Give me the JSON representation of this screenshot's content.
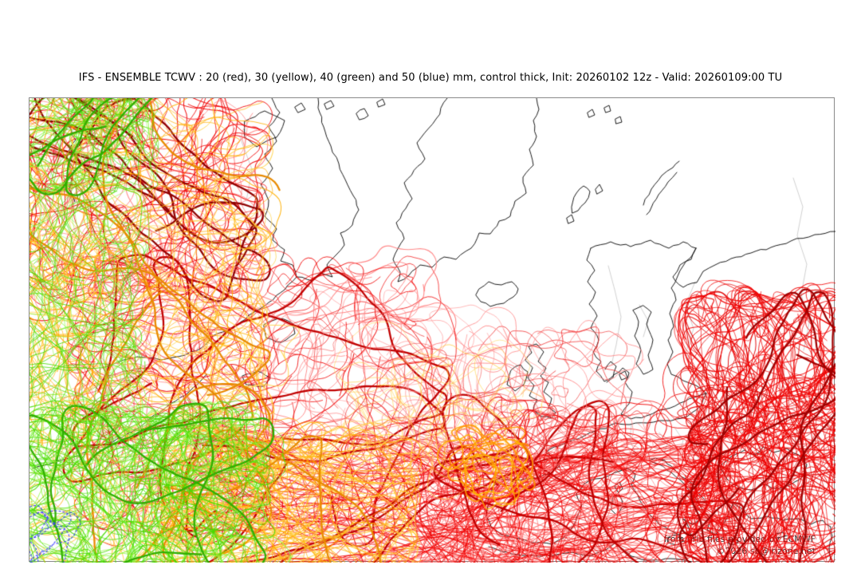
{
  "title": "IFS - ENSEMBLE TCWV : 20 (red), 30 (yellow), 40 (green) and 50 (blue) mm, control thick, Init: 20260102 12z - Valid: 20260109:00 TU",
  "run": {
    "model": "IFS - ENSEMBLE",
    "parameter": "TCWV",
    "units": "mm",
    "style_note": "control thick",
    "init": "20260102 12z",
    "valid": "20260109:00 TU"
  },
  "attribution": {
    "line1": "from grib files provided by ECMWF",
    "line2": "©2026 sb@irizone.net"
  },
  "map": {
    "coast_color": "#000000",
    "border_color": "#c4c4c4",
    "frame_color": "#8a8a8a",
    "background": "#ffffff",
    "contour_levels_mm": [
      {
        "value": 20,
        "color_name": "red",
        "hex": "#f00000"
      },
      {
        "value": 30,
        "color_name": "yellow",
        "hex": "#ffaf00"
      },
      {
        "value": 40,
        "color_name": "green",
        "hex": "#49dc00"
      },
      {
        "value": 50,
        "color_name": "blue",
        "hex": "#3c3cff"
      }
    ]
  },
  "spaghetti_clusters": [
    {
      "name": "red-northwest-tangle",
      "color": "#f00000",
      "alt": "#ff7d7d",
      "width": 0.9,
      "walks": 55,
      "loops": 32,
      "controls": 3,
      "control_color": "#8f0000",
      "region": [
        4,
        6,
        275,
        227
      ],
      "bias": "r",
      "seed": 101
    },
    {
      "name": "red-central-atlantic",
      "color": "#f00000",
      "alt": "#ff7d7d",
      "width": 0.9,
      "walks": 85,
      "loops": 48,
      "controls": 4,
      "control_color": "#c00000",
      "region": [
        64,
        218,
        445,
        315
      ],
      "bias": "r",
      "seed": 102
    },
    {
      "name": "red-southern-band",
      "color": "#f00000",
      "alt": "#ff6060",
      "width": 0.9,
      "walks": 70,
      "loops": 18,
      "controls": 2,
      "control_color": "#c00000",
      "region": [
        204,
        453,
        675,
        129
      ],
      "bias": "h",
      "seed": 103
    },
    {
      "name": "red-iberia-mediterranean",
      "color": "#f00000",
      "alt": "#ff7d7d",
      "width": 0.9,
      "walks": 48,
      "loops": 34,
      "controls": 2,
      "control_color": "#c00000",
      "region": [
        519,
        403,
        325,
        179
      ],
      "bias": "r",
      "seed": 104
    },
    {
      "name": "red-uk-france-sparse",
      "color": "#ff8282",
      "alt": "#f03030",
      "width": 0.8,
      "walks": 13,
      "loops": 12,
      "controls": 0,
      "control_color": "#c00000",
      "region": [
        559,
        298,
        185,
        155
      ],
      "bias": "r",
      "seed": 105
    },
    {
      "name": "red-mid-sparse",
      "color": "#ff8c8c",
      "alt": "#f04040",
      "width": 0.8,
      "walks": 10,
      "loops": 14,
      "controls": 0,
      "control_color": "#c00000",
      "region": [
        359,
        253,
        235,
        170
      ],
      "bias": "r",
      "seed": 106
    },
    {
      "name": "red-east-blacksea-mass",
      "color": "#f00000",
      "alt": "#e00000",
      "width": 1.0,
      "walks": 95,
      "loops": 42,
      "controls": 3,
      "control_color": "#a00000",
      "region": [
        839,
        253,
        172,
        329
      ],
      "bias": "v",
      "seed": 107
    },
    {
      "name": "yellow-west-band",
      "color": "#ffaf00",
      "alt": "#ffd34d",
      "width": 0.9,
      "walks": 115,
      "loops": 48,
      "controls": 3,
      "control_color": "#e88a00",
      "region": [
        2,
        2,
        285,
        580
      ],
      "bias": "r",
      "seed": 108
    },
    {
      "name": "yellow-southern-diagonal",
      "color": "#ffaf00",
      "alt": "#ffcf40",
      "width": 0.9,
      "walks": 36,
      "loops": 10,
      "controls": 1,
      "control_color": "#e88a00",
      "region": [
        179,
        433,
        295,
        149
      ],
      "bias": "h",
      "seed": 109
    },
    {
      "name": "yellow-midatlantic-faint",
      "color": "#ffd34d",
      "alt": "#ffc730",
      "width": 0.7,
      "walks": 9,
      "loops": 12,
      "controls": 0,
      "control_color": "#e88a00",
      "region": [
        394,
        343,
        230,
        115
      ],
      "bias": "r",
      "seed": 110
    },
    {
      "name": "orange-iberia-blob",
      "color": "#ff9800",
      "alt": "#ffb400",
      "width": 1.6,
      "walks": 4,
      "loops": 5,
      "controls": 0,
      "control_color": "#e88a00",
      "region": [
        536,
        428,
        78,
        58
      ],
      "bias": "r",
      "seed": 111
    },
    {
      "name": "green-southwest-mass",
      "color": "#49dc00",
      "alt": "#8ef53e",
      "width": 0.9,
      "walks": 85,
      "loops": 32,
      "controls": 2,
      "control_color": "#2fae00",
      "region": [
        2,
        403,
        285,
        179
      ],
      "bias": "r",
      "seed": 112
    },
    {
      "name": "green-west-strip",
      "color": "#49dc00",
      "alt": "#8ef53e",
      "width": 0.8,
      "walks": 30,
      "loops": 10,
      "controls": 0,
      "control_color": "#2fae00",
      "region": [
        2,
        123,
        120,
        320
      ],
      "bias": "v",
      "seed": 113
    },
    {
      "name": "green-northwest-corner",
      "color": "#49dc00",
      "alt": "#8ef53e",
      "width": 0.8,
      "walks": 22,
      "loops": 10,
      "controls": 1,
      "control_color": "#2fae00",
      "region": [
        2,
        2,
        150,
        102
      ],
      "bias": "r",
      "seed": 114
    },
    {
      "name": "blue-southwest-corner",
      "color": "#3c3cff",
      "alt": "#3c3cff",
      "width": 1.0,
      "walks": 2,
      "loops": 1,
      "controls": 0,
      "control_color": "#3c3cff",
      "region": [
        2,
        526,
        40,
        54
      ],
      "bias": "r",
      "dashed": true,
      "seed": 115
    }
  ]
}
